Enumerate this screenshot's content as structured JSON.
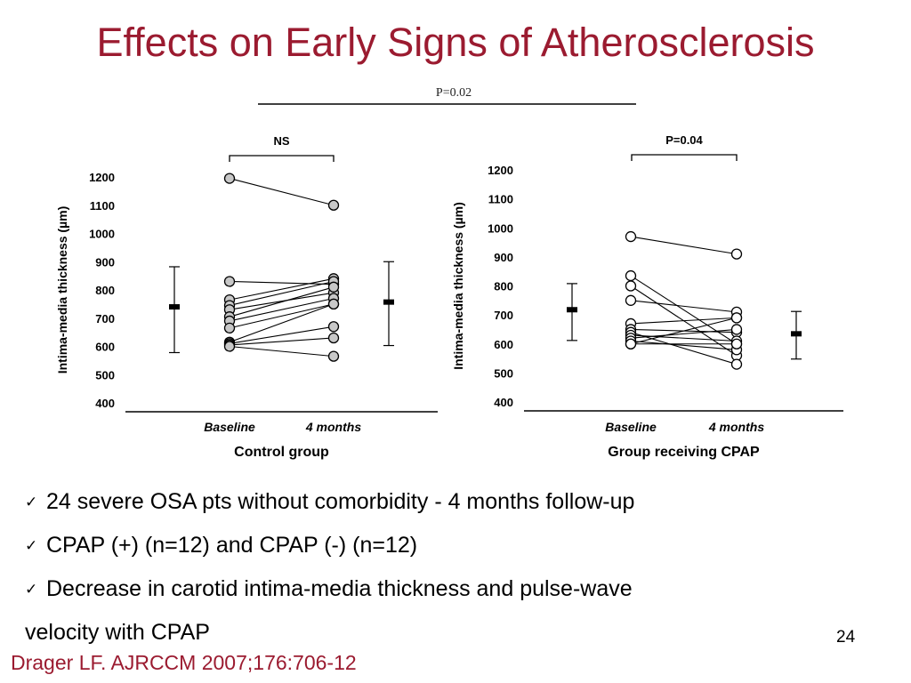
{
  "slide": {
    "title": "Effects on Early Signs of Atherosclerosis",
    "title_color": "#9b1b30",
    "bullets": [
      "24 severe OSA pts without comorbidity - 4 months follow-up",
      "CPAP (+) (n=12) and CPAP (-) (n=12)",
      "Decrease in carotid intima-media thickness and pulse-wave"
    ],
    "bullet_continuation": "velocity with CPAP",
    "check_icon": "checkmark-icon",
    "page_number": "24",
    "citation": "Drager LF. AJRCCM 2007;176:706-12",
    "citation_color": "#9b1b30"
  },
  "chart_data": [
    {
      "type": "scatter",
      "panel_label": "Control group",
      "overall_comparison": "P=0.02",
      "comparison": "NS",
      "ylabel": "Intima-media thickness (µm)",
      "ylim": [
        400,
        1200
      ],
      "yticks": [
        400,
        500,
        600,
        700,
        800,
        900,
        1000,
        1100,
        1200
      ],
      "categories": [
        "Baseline",
        "4 months"
      ],
      "paired_points": [
        [
          1195,
          1100
        ],
        [
          830,
          820
        ],
        [
          765,
          840
        ],
        [
          745,
          830
        ],
        [
          730,
          790
        ],
        [
          705,
          810
        ],
        [
          690,
          770
        ],
        [
          665,
          750
        ],
        [
          615,
          750
        ],
        [
          610,
          670
        ],
        [
          605,
          630
        ],
        [
          600,
          565
        ]
      ],
      "summary_markers": [
        {
          "position": "left",
          "mean": 740,
          "low": 578,
          "high": 882
        },
        {
          "position": "right",
          "mean": 757,
          "low": 603,
          "high": 900
        }
      ]
    },
    {
      "type": "scatter",
      "panel_label": "Group receiving CPAP",
      "comparison": "P=0.04",
      "ylabel": "Intima-media thickness (µm)",
      "ylim": [
        400,
        1200
      ],
      "yticks": [
        400,
        500,
        600,
        700,
        800,
        900,
        1000,
        1100,
        1200
      ],
      "categories": [
        "Baseline",
        "4 months"
      ],
      "paired_points": [
        [
          970,
          910
        ],
        [
          835,
          600
        ],
        [
          800,
          560
        ],
        [
          750,
          710
        ],
        [
          670,
          690
        ],
        [
          650,
          640
        ],
        [
          640,
          530
        ],
        [
          630,
          610
        ],
        [
          620,
          650
        ],
        [
          610,
          580
        ],
        [
          600,
          690
        ],
        [
          600,
          600
        ]
      ],
      "summary_markers": [
        {
          "position": "left",
          "mean": 718,
          "low": 612,
          "high": 808
        },
        {
          "position": "right",
          "mean": 635,
          "low": 548,
          "high": 712
        }
      ]
    }
  ]
}
